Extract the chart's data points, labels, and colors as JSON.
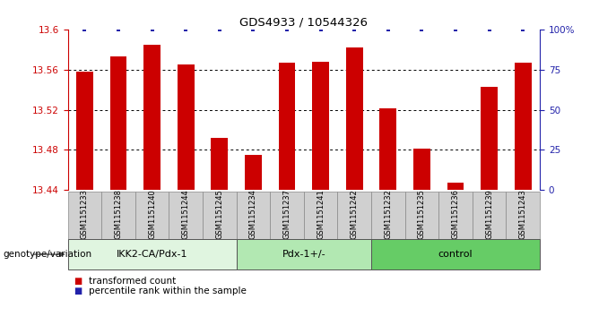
{
  "title": "GDS4933 / 10544326",
  "samples": [
    "GSM1151233",
    "GSM1151238",
    "GSM1151240",
    "GSM1151244",
    "GSM1151245",
    "GSM1151234",
    "GSM1151237",
    "GSM1151241",
    "GSM1151242",
    "GSM1151232",
    "GSM1151235",
    "GSM1151236",
    "GSM1151239",
    "GSM1151243"
  ],
  "bar_values": [
    13.558,
    13.573,
    13.585,
    13.565,
    13.492,
    13.475,
    13.567,
    13.568,
    13.582,
    13.521,
    13.481,
    13.447,
    13.543,
    13.567
  ],
  "ymin": 13.44,
  "ymax": 13.6,
  "yticks": [
    13.44,
    13.48,
    13.52,
    13.56,
    13.6
  ],
  "right_yticks": [
    0,
    25,
    50,
    75,
    100
  ],
  "bar_color": "#cc0000",
  "percentile_color": "#2222aa",
  "groups": [
    {
      "label": "IKK2-CA/Pdx-1",
      "start": 0,
      "end": 5,
      "color": "#e0f5e0"
    },
    {
      "label": "Pdx-1+/-",
      "start": 5,
      "end": 9,
      "color": "#b2e8b2"
    },
    {
      "label": "control",
      "start": 9,
      "end": 14,
      "color": "#66cc66"
    }
  ],
  "legend_items": [
    {
      "label": "transformed count",
      "color": "#cc0000"
    },
    {
      "label": "percentile rank within the sample",
      "color": "#2222aa"
    }
  ],
  "genotype_label": "genotype/variation",
  "tick_color_left": "#cc0000",
  "tick_color_right": "#2222aa",
  "label_bg_color": "#d0d0d0",
  "bar_width": 0.5
}
